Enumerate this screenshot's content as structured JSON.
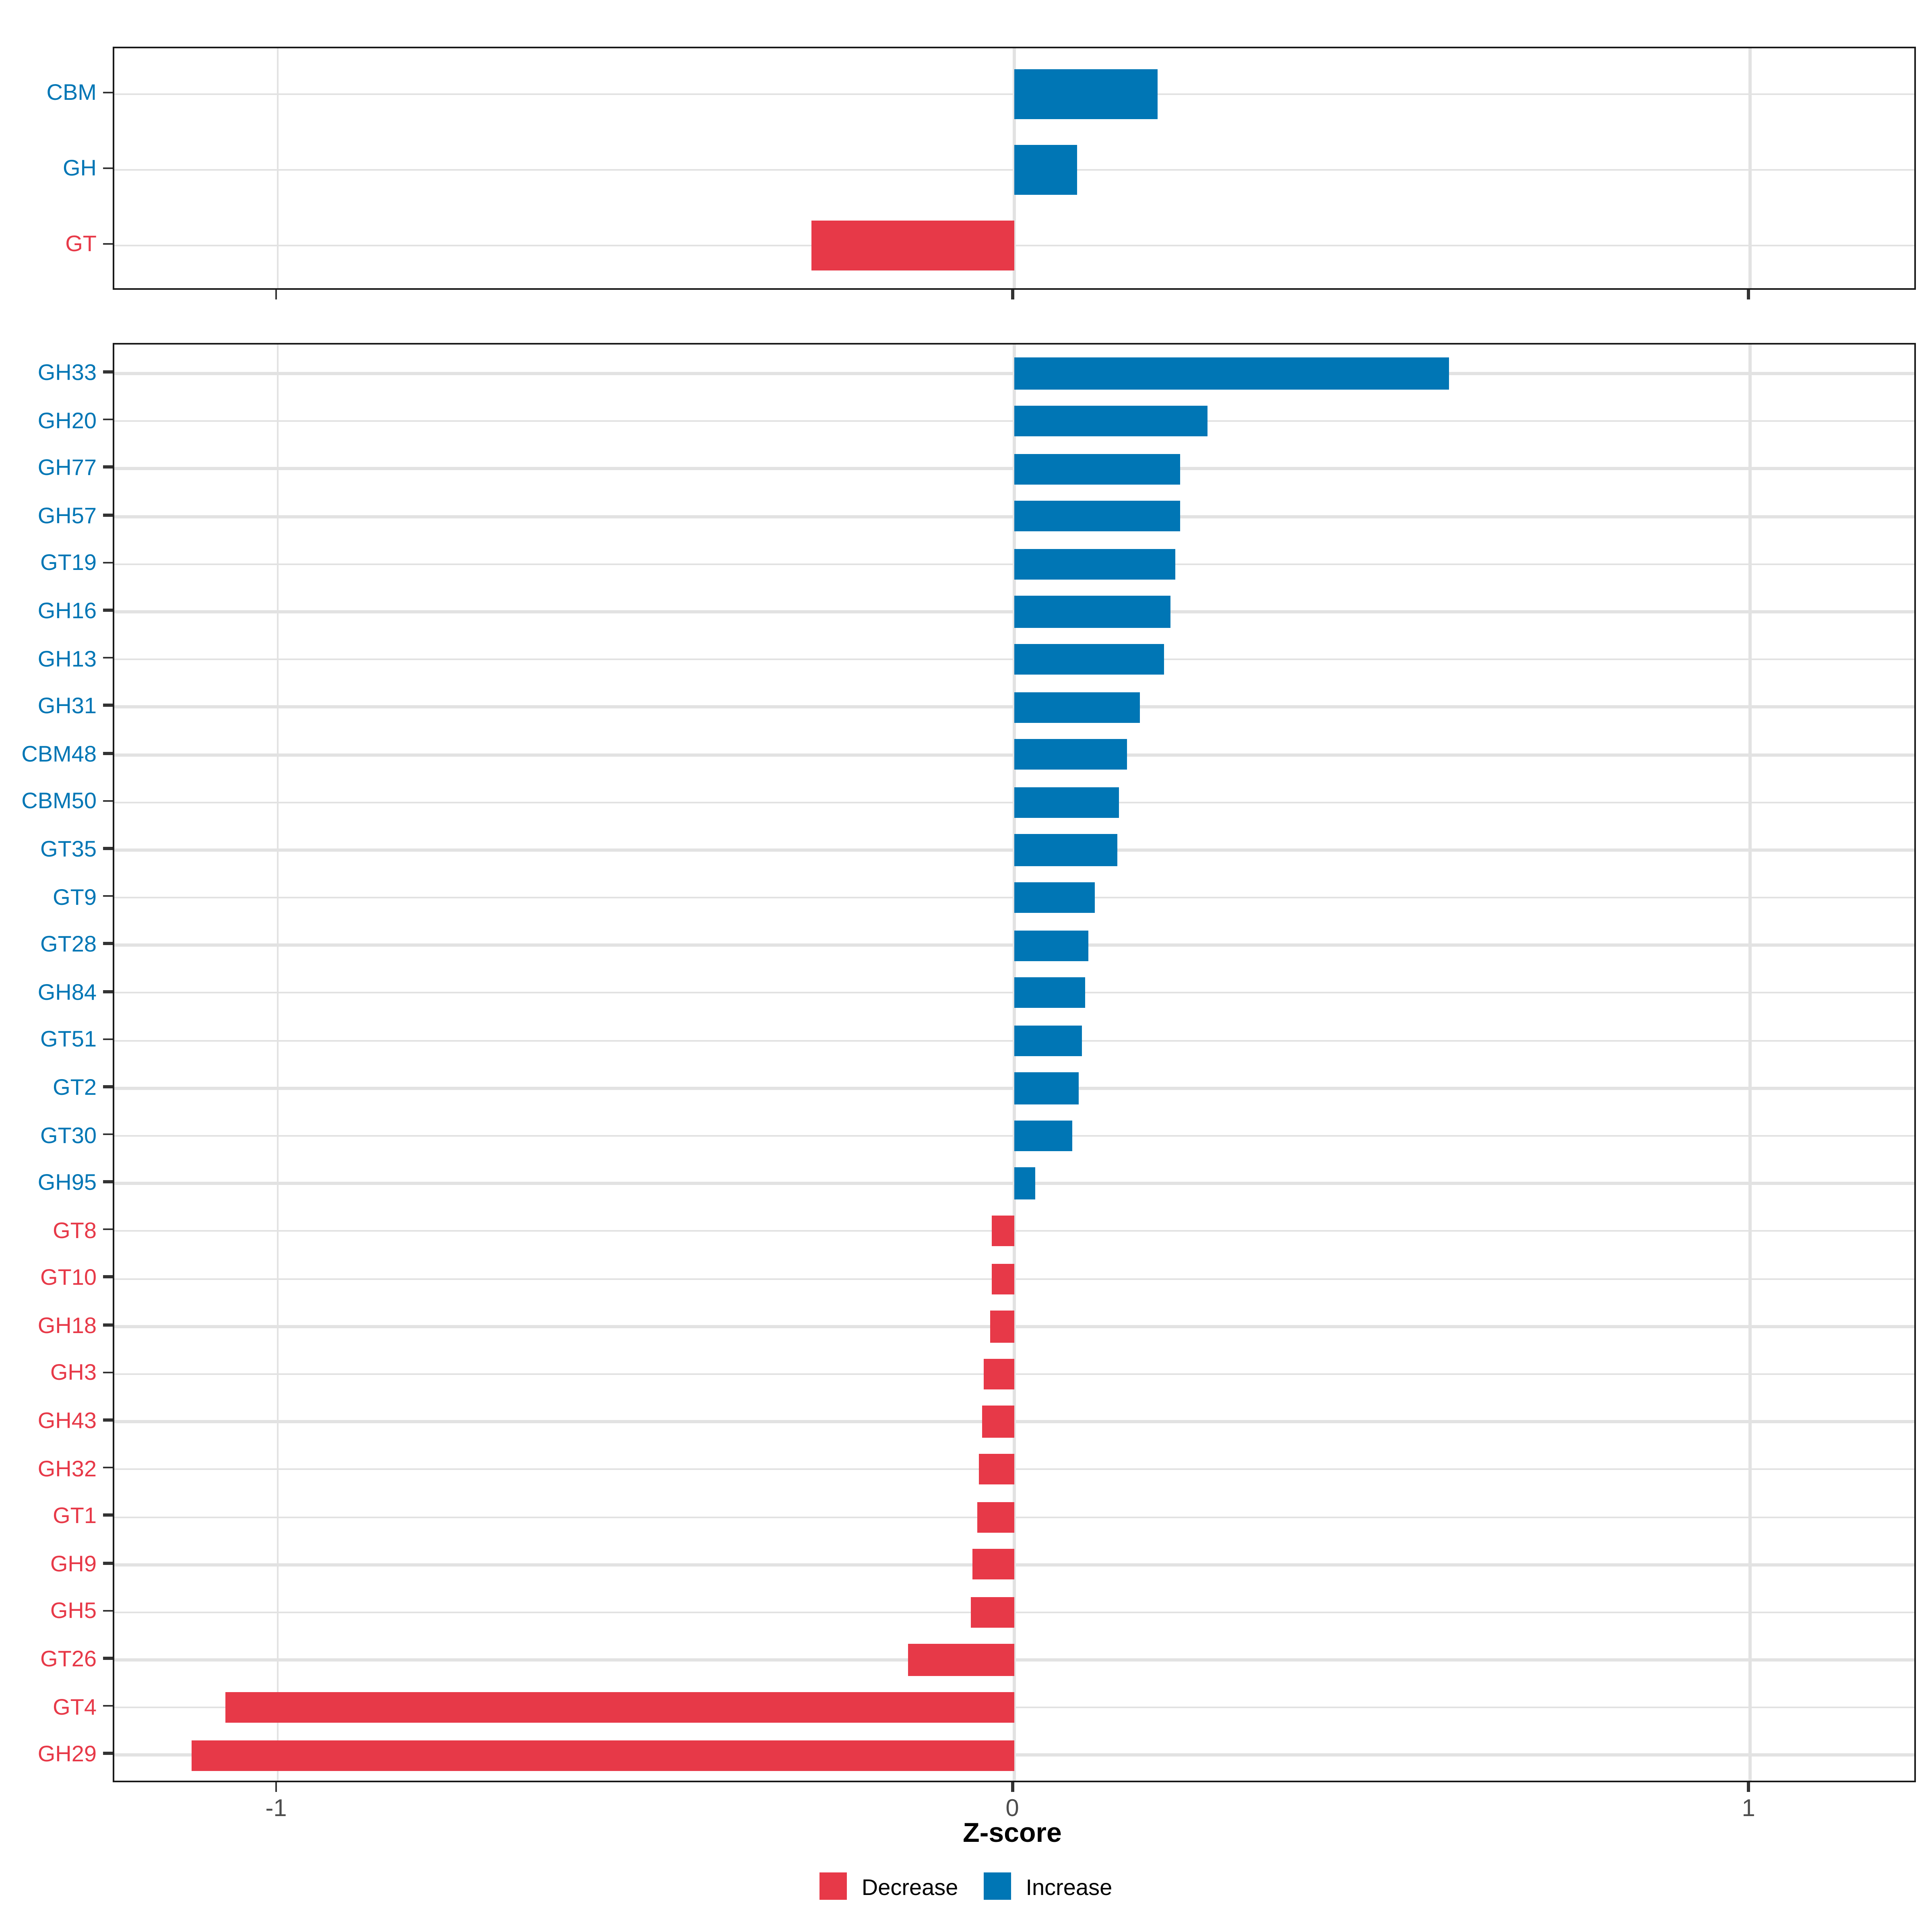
{
  "axis": {
    "label": "Z-score",
    "ticks": [
      {
        "label": "-1",
        "value": -1
      },
      {
        "label": "0",
        "value": 0
      },
      {
        "label": "1",
        "value": 1
      }
    ]
  },
  "legend": {
    "decrease_label": "Decrease",
    "increase_label": "Increase"
  },
  "colors": {
    "increase": "#0076B5",
    "decrease": "#E73948",
    "grid": "#E2E2E2",
    "axis_text": "#4D4D4D",
    "tick_mark": "#333333",
    "panel_border": "#1A1A1A",
    "background": "#FFFFFF"
  },
  "chart_data": {
    "type": "bar",
    "orientation": "horizontal",
    "title": "",
    "xlabel": "Z-score",
    "ylabel": "",
    "xlim": [
      -1.22,
      1.23
    ],
    "x_ticks": [
      -1,
      0,
      1
    ],
    "grid": "major",
    "legend_position": "bottom",
    "legend_entries": [
      {
        "label": "Decrease",
        "color": "#E73948"
      },
      {
        "label": "Increase",
        "color": "#0076B5"
      }
    ],
    "panels": [
      {
        "name": "enzyme-classes",
        "categories": [
          "CBM",
          "GH",
          "GT"
        ],
        "values": [
          0.195,
          0.085,
          -0.275
        ]
      },
      {
        "name": "enzyme-families",
        "categories": [
          "GH33",
          "GH20",
          "GH77",
          "GH57",
          "GT19",
          "GH16",
          "GH13",
          "GH31",
          "CBM48",
          "CBM50",
          "GT35",
          "GT9",
          "GT28",
          "GH84",
          "GT51",
          "GT2",
          "GT30",
          "GH95",
          "GT8",
          "GT10",
          "GH18",
          "GH3",
          "GH43",
          "GH32",
          "GT1",
          "GH9",
          "GH5",
          "GT26",
          "GT4",
          "GH29"
        ],
        "values": [
          0.59,
          0.264,
          0.226,
          0.225,
          0.219,
          0.213,
          0.204,
          0.171,
          0.153,
          0.142,
          0.141,
          0.109,
          0.101,
          0.097,
          0.092,
          0.089,
          0.079,
          0.029,
          -0.03,
          -0.031,
          -0.033,
          -0.04,
          -0.044,
          -0.047,
          -0.049,
          -0.057,
          -0.059,
          -0.143,
          -1.071,
          -1.116
        ]
      }
    ]
  }
}
